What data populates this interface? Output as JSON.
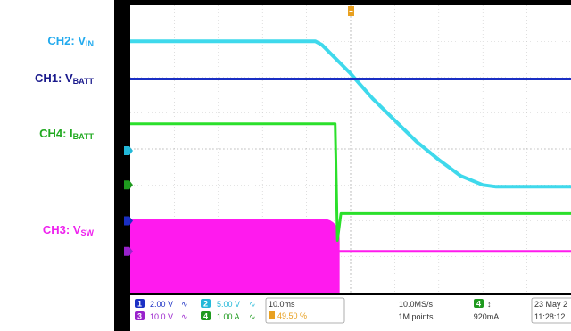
{
  "channel_labels": [
    {
      "id": "ch2",
      "prefix": "CH2: V",
      "sub": "IN",
      "color": "#22aaee"
    },
    {
      "id": "ch1",
      "prefix": "CH1: V",
      "sub": "BATT",
      "color": "#1a1a8c"
    },
    {
      "id": "ch4",
      "prefix": "CH4: I",
      "sub": "BATT",
      "color": "#22aa22"
    },
    {
      "id": "ch3",
      "prefix": "CH3: V",
      "sub": "SW",
      "color": "#ee22ee"
    }
  ],
  "status_bar": {
    "ch1": {
      "num": "1",
      "scale": "2.00 V"
    },
    "ch2": {
      "num": "2",
      "scale": "5.00 V"
    },
    "ch3": {
      "num": "3",
      "scale": "10.0 V"
    },
    "ch4": {
      "num": "4",
      "scale": "1.00 A"
    },
    "timebase": "10.0ms",
    "trigger_pos": "49.50 %",
    "sample_rate": "10.0MS/s",
    "record_length": "1M points",
    "trig_ch": "4",
    "trig_level": "920mA",
    "date": "23 May 2",
    "time": "11:28:12"
  },
  "chart_data": {
    "type": "line",
    "divisions": {
      "x": 10,
      "y": 8
    },
    "trigger_time_div": 5.0,
    "series": [
      {
        "name": "CH2: VIN",
        "color": "#3fd9ec",
        "points": [
          [
            0,
            7.0
          ],
          [
            4.2,
            7.0
          ],
          [
            4.35,
            6.9
          ],
          [
            5.0,
            6.1
          ],
          [
            5.5,
            5.4
          ],
          [
            6.0,
            4.8
          ],
          [
            6.5,
            4.2
          ],
          [
            7.0,
            3.7
          ],
          [
            7.5,
            3.25
          ],
          [
            8.0,
            3.0
          ],
          [
            8.3,
            2.95
          ],
          [
            8.7,
            2.95
          ],
          [
            10,
            2.95
          ]
        ]
      },
      {
        "name": "CH1: VBATT",
        "color": "#1a2fc4",
        "points": [
          [
            0,
            5.95
          ],
          [
            10,
            5.95
          ]
        ]
      },
      {
        "name": "CH4: IBATT",
        "color": "#2be02b",
        "points": [
          [
            0,
            4.7
          ],
          [
            4.65,
            4.7
          ],
          [
            4.7,
            1.45
          ],
          [
            4.78,
            2.2
          ],
          [
            10,
            2.2
          ]
        ]
      },
      {
        "name": "CH3: VSW",
        "color": "#ff1aee",
        "points": [
          [
            0,
            1.15
          ],
          [
            4.7,
            1.15
          ],
          [
            4.75,
            1.15
          ],
          [
            10,
            1.15
          ]
        ],
        "switching_band": {
          "top": 2.05,
          "bottom": 0.0,
          "end": 4.75
        }
      }
    ]
  }
}
